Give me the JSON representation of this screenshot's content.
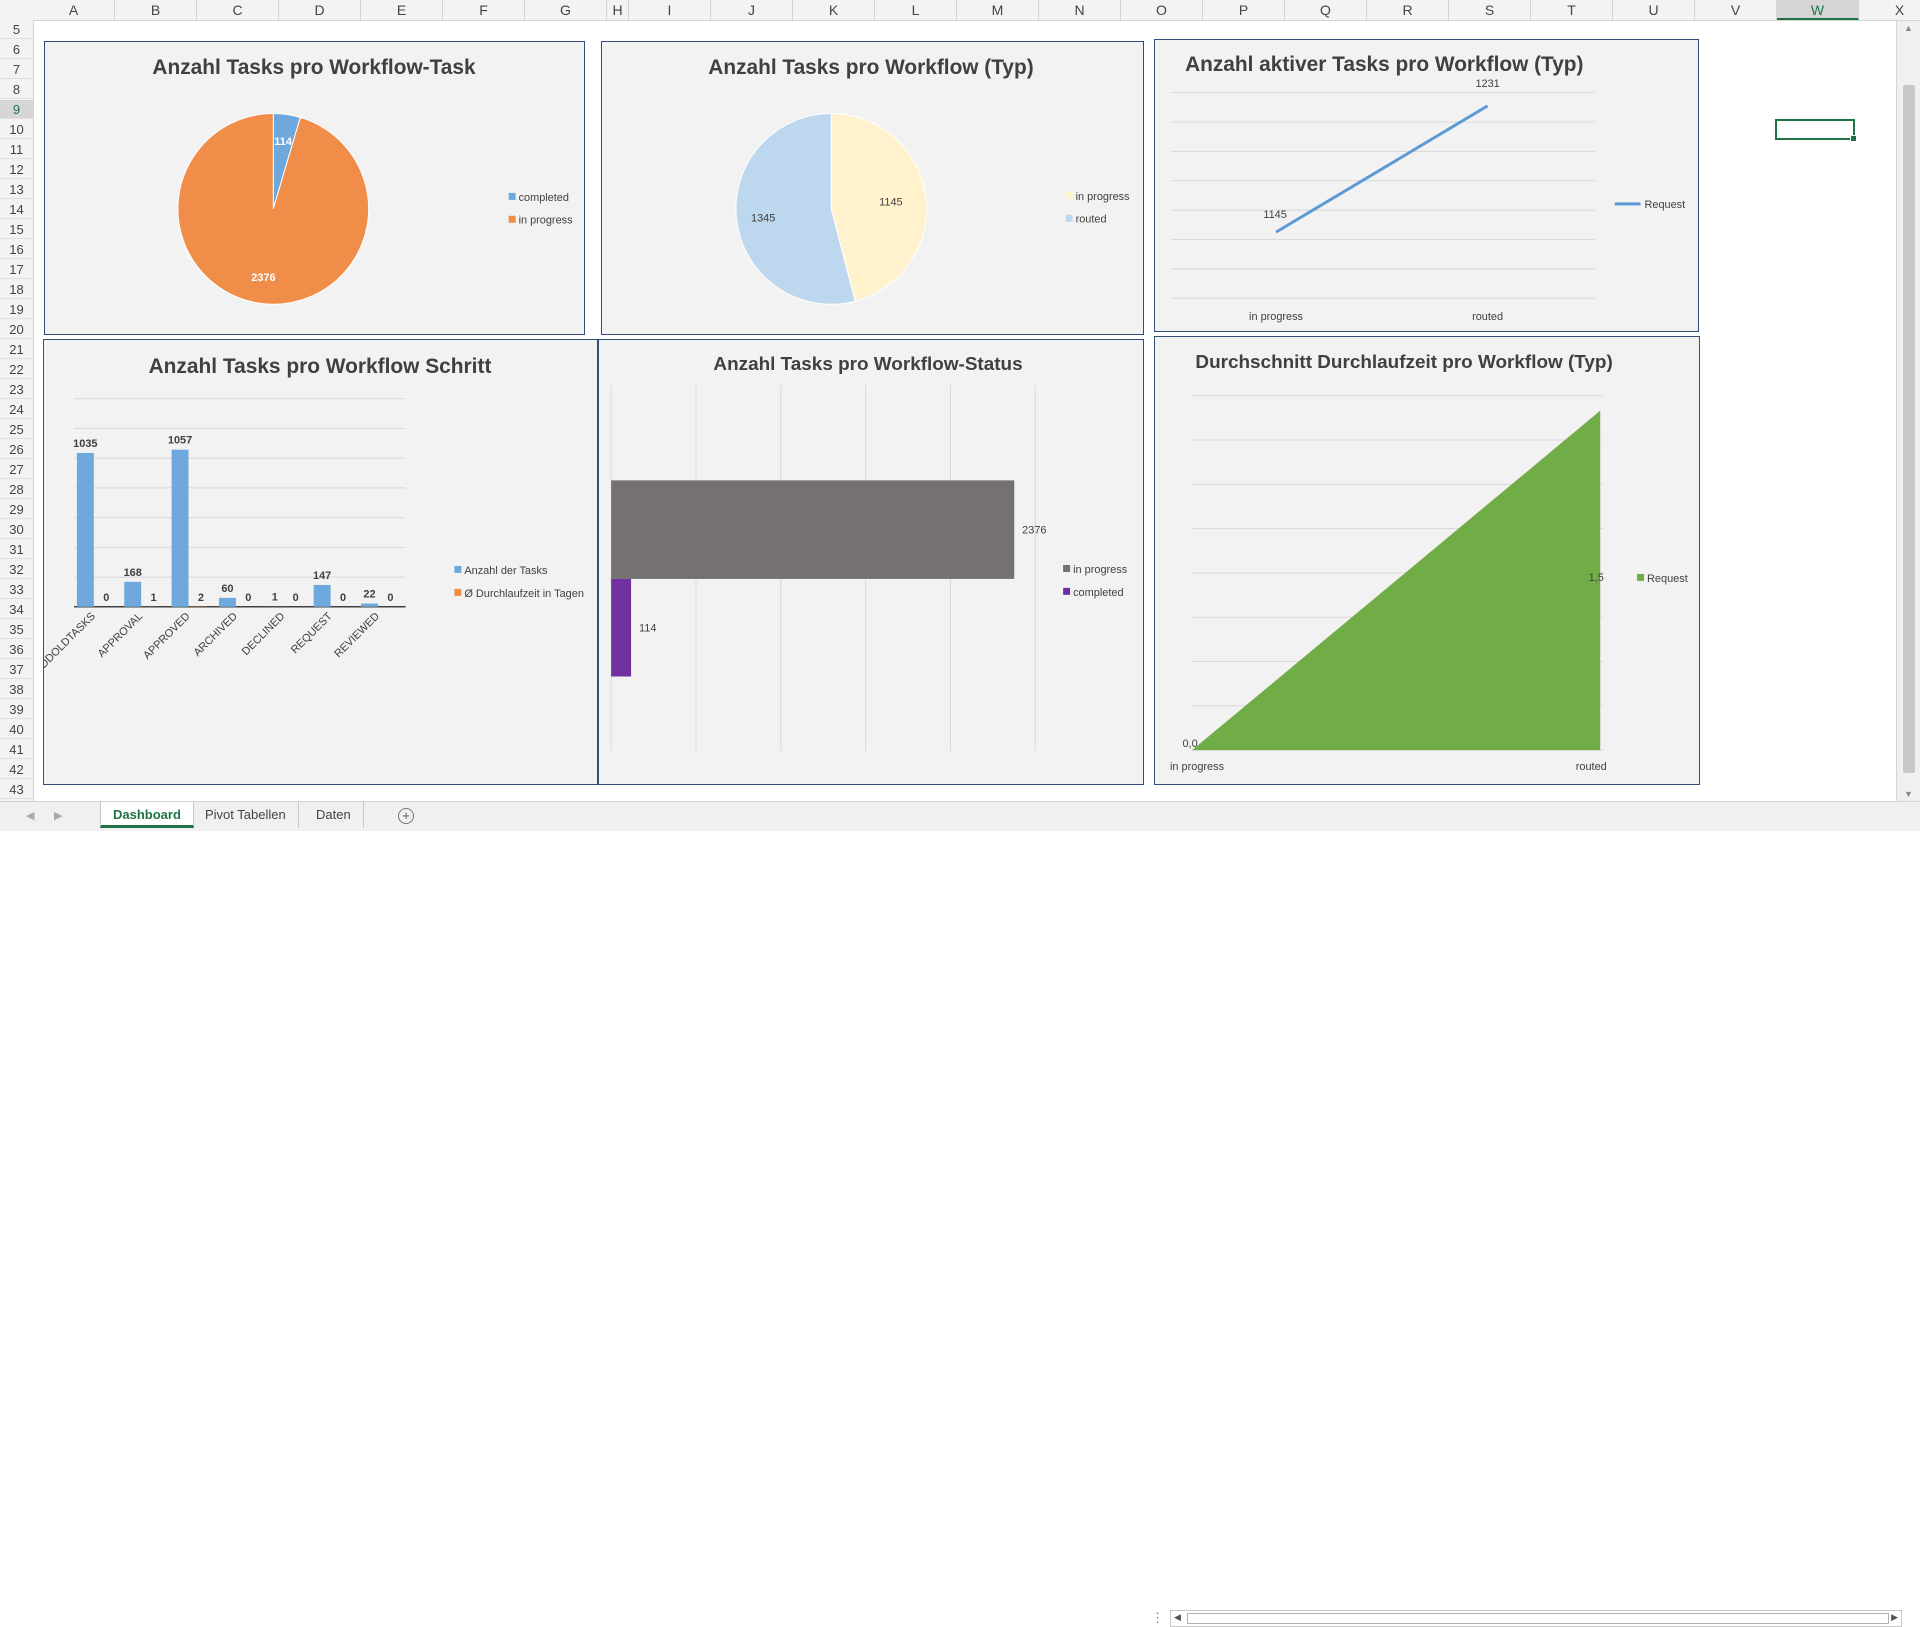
{
  "columns": [
    "A",
    "B",
    "C",
    "D",
    "E",
    "F",
    "G",
    "H",
    "I",
    "J",
    "K",
    "L",
    "M",
    "N",
    "O",
    "P",
    "Q",
    "R",
    "S",
    "T",
    "U",
    "V",
    "W",
    "X"
  ],
  "rows": [
    "5",
    "6",
    "7",
    "8",
    "9",
    "10",
    "11",
    "12",
    "13",
    "14",
    "15",
    "16",
    "17",
    "18",
    "19",
    "20",
    "21",
    "22",
    "23",
    "24",
    "25",
    "26",
    "27",
    "28",
    "29",
    "30",
    "31",
    "32",
    "33",
    "34",
    "35",
    "36",
    "37",
    "38",
    "39",
    "40",
    "41",
    "42",
    "43"
  ],
  "selected_column": "W",
  "selected_row": "9",
  "tabs": {
    "dashboard": "Dashboard",
    "pivot": "Pivot Tabellen",
    "daten": "Daten"
  },
  "colors": {
    "accent": "#217346",
    "chart_border": "#2f4f7a"
  },
  "chart_data": [
    {
      "id": "c1",
      "type": "pie",
      "title": "Anzahl Tasks pro Workflow-Task",
      "series": [
        {
          "name": "completed",
          "value": 114,
          "color": "#6fa8dc"
        },
        {
          "name": "in progress",
          "value": 2376,
          "color": "#f08d49"
        }
      ],
      "legend": "right"
    },
    {
      "id": "c2",
      "type": "pie",
      "title": "Anzahl Tasks pro Workflow (Typ)",
      "series": [
        {
          "name": "in progress",
          "value": 1145,
          "color": "#fff2cc"
        },
        {
          "name": "routed",
          "value": 1345,
          "color": "#bdd7ee"
        }
      ],
      "legend": "right"
    },
    {
      "id": "c3",
      "type": "line",
      "title": "Anzahl aktiver Tasks pro Workflow (Typ)",
      "categories": [
        "in progress",
        "routed"
      ],
      "series": [
        {
          "name": "Request",
          "values": [
            1145,
            1231
          ],
          "color": "#5b9bd5"
        }
      ],
      "grid": true,
      "legend": "right"
    },
    {
      "id": "c4",
      "type": "bar",
      "title": "Anzahl Tasks pro Workflow Schritt",
      "categories": [
        "ADDOLDTASKS",
        "APPROVAL",
        "APPROVED",
        "ARCHIVED",
        "DECLINED",
        "REQUEST",
        "REVIEWED"
      ],
      "series": [
        {
          "name": "Anzahl der Tasks",
          "values": [
            1035,
            168,
            1057,
            60,
            1,
            147,
            22
          ],
          "color": "#6fa8dc"
        },
        {
          "name": "Ø Durchlaufzeit in Tagen",
          "values": [
            0,
            1,
            2,
            0,
            0,
            0,
            0
          ],
          "color": "#f08d49"
        }
      ],
      "ylim": [
        0,
        1400
      ],
      "grid": true,
      "legend": "right"
    },
    {
      "id": "c5",
      "type": "bar",
      "title": "Anzahl Tasks pro Workflow-Status",
      "series": [
        {
          "name": "in progress",
          "value": 2376,
          "color": "#757171"
        },
        {
          "name": "completed",
          "value": 114,
          "color": "#7030a0"
        }
      ],
      "xlim": [
        0,
        2500
      ],
      "grid": true,
      "legend": "right"
    },
    {
      "id": "c6",
      "type": "area",
      "title": "Durchschnitt Durchlaufzeit pro Workflow (Typ)",
      "categories": [
        "in progress",
        "routed"
      ],
      "series": [
        {
          "name": "Request",
          "values": [
            0,
            1.5
          ],
          "color": "#70ad47"
        }
      ],
      "data_labels": [
        "0,0",
        "1,5"
      ],
      "grid": true,
      "legend": "right"
    }
  ]
}
